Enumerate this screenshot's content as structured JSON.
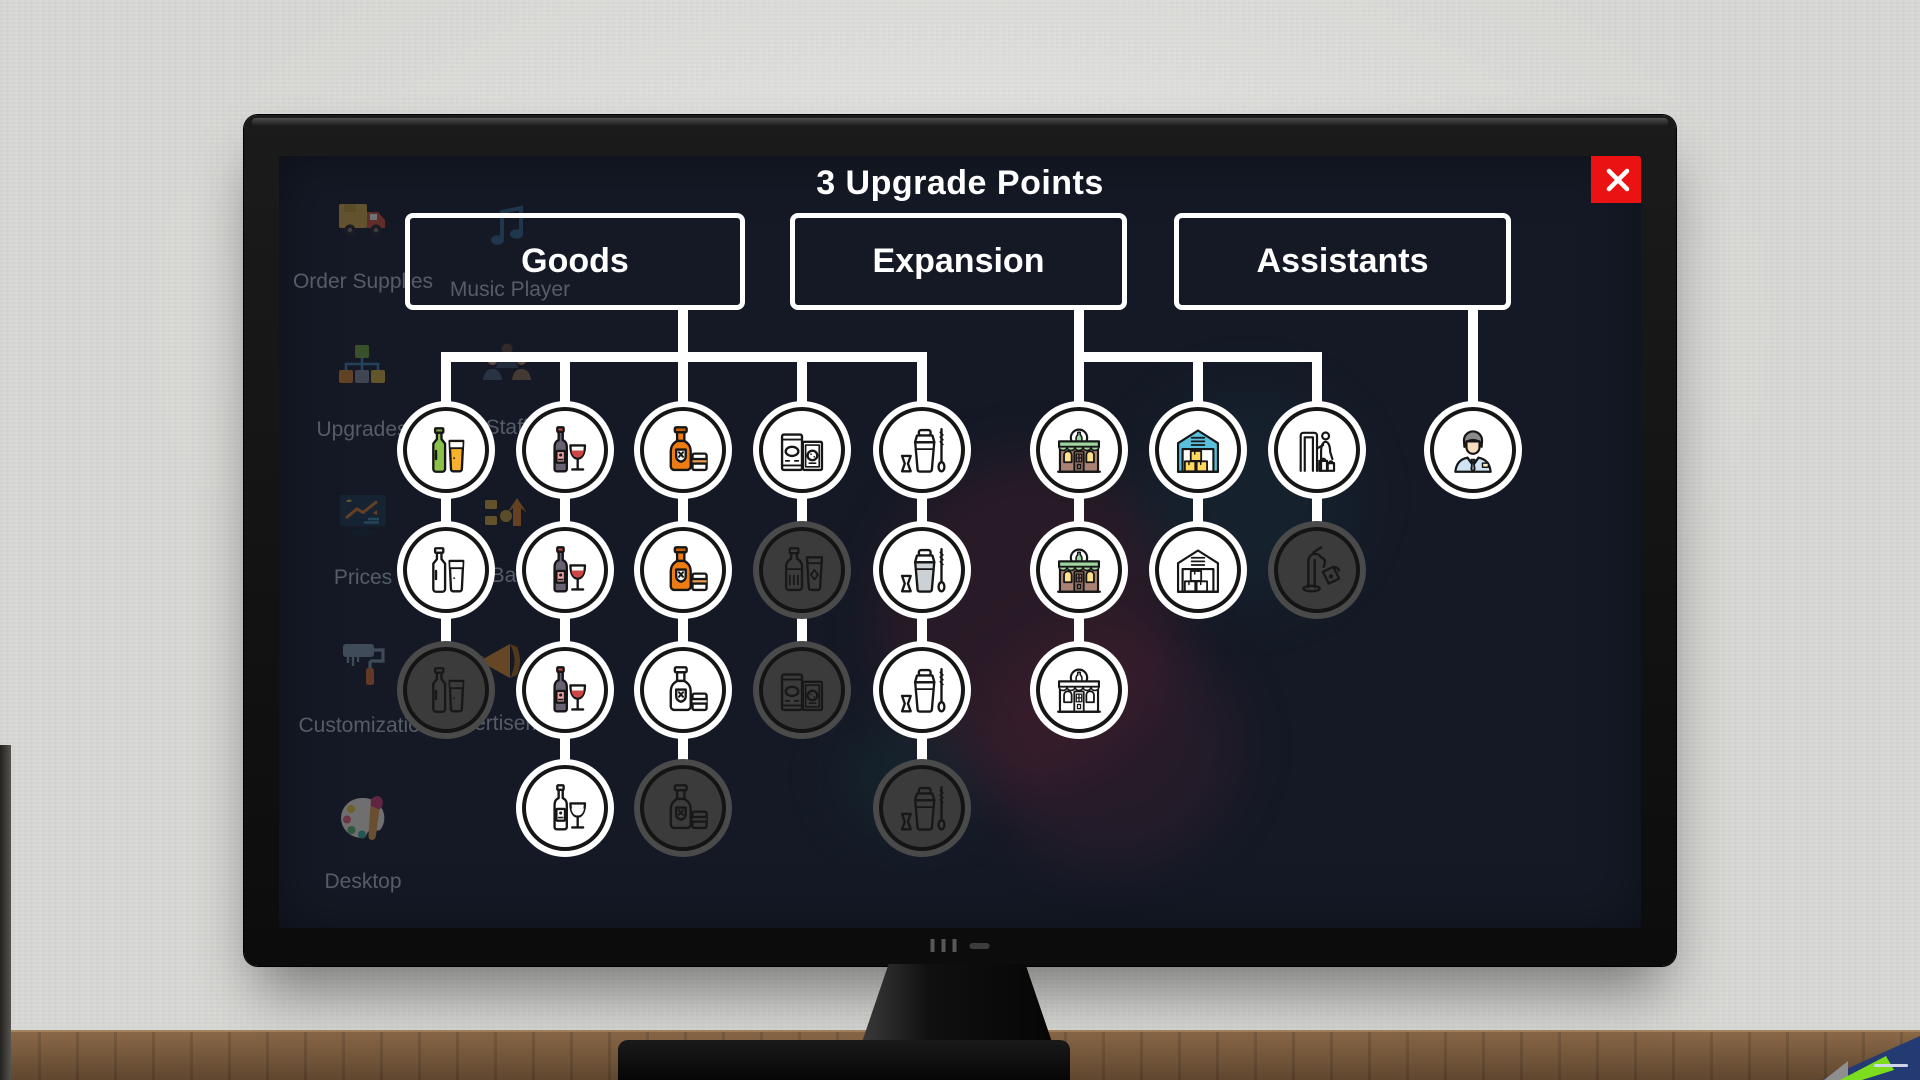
{
  "screen": {
    "title": "3 Upgrade Points",
    "upgrade_points": 3,
    "close": {
      "icon": "close-icon"
    },
    "tree": {
      "branches": [
        {
          "label": "Goods",
          "columns": [
            {
              "nodes": [
                {
                  "icon": "beer",
                  "state": "color"
                },
                {
                  "icon": "beer",
                  "state": "outline"
                },
                {
                  "icon": "beer",
                  "state": "locked"
                }
              ]
            },
            {
              "nodes": [
                {
                  "icon": "wine",
                  "state": "color"
                },
                {
                  "icon": "wine",
                  "state": "color"
                },
                {
                  "icon": "wine",
                  "state": "color"
                },
                {
                  "icon": "wine",
                  "state": "outline"
                }
              ]
            },
            {
              "nodes": [
                {
                  "icon": "whiskey",
                  "state": "color"
                },
                {
                  "icon": "whiskey",
                  "state": "color"
                },
                {
                  "icon": "whiskey",
                  "state": "outline"
                },
                {
                  "icon": "whiskey",
                  "state": "locked"
                }
              ]
            },
            {
              "nodes": [
                {
                  "icon": "snacks",
                  "state": "outline"
                },
                {
                  "icon": "soda",
                  "state": "locked"
                },
                {
                  "icon": "snacks",
                  "state": "locked"
                }
              ]
            },
            {
              "nodes": [
                {
                  "icon": "shaker",
                  "state": "outline"
                },
                {
                  "icon": "shaker",
                  "state": "tinted"
                },
                {
                  "icon": "shaker",
                  "state": "outline"
                },
                {
                  "icon": "shaker",
                  "state": "locked"
                }
              ]
            }
          ]
        },
        {
          "label": "Expansion",
          "columns": [
            {
              "nodes": [
                {
                  "icon": "shop",
                  "state": "color"
                },
                {
                  "icon": "shop",
                  "state": "color"
                },
                {
                  "icon": "shop",
                  "state": "outline"
                }
              ]
            },
            {
              "nodes": [
                {
                  "icon": "warehouse",
                  "state": "color"
                },
                {
                  "icon": "warehouse",
                  "state": "outline"
                }
              ]
            },
            {
              "nodes": [
                {
                  "icon": "kiosk",
                  "state": "outline"
                },
                {
                  "icon": "tap",
                  "state": "locked"
                }
              ]
            }
          ]
        },
        {
          "label": "Assistants",
          "columns": [
            {
              "nodes": [
                {
                  "icon": "assistant",
                  "state": "color"
                }
              ]
            }
          ]
        }
      ]
    },
    "palette": {
      "beer": {
        "fa": "#8bc34a",
        "fb": "#f9b32b",
        "fc": "#7a9e3b",
        "fd": "#ffffff"
      },
      "wine": {
        "fa": "#6a6170",
        "fb": "#f0a3a3",
        "fc": "#cf4444",
        "fd": "#ffffff"
      },
      "whiskey": {
        "fa": "#ee7c12",
        "fb": "#f2a24b",
        "fc": "#c75f0a",
        "fd": "#ffffff"
      },
      "shop": {
        "fa": "#a98274",
        "fb": "#9fd6a0",
        "fc": "#ffe18a",
        "fd": "#8d6e63",
        "fe": "#ffffff"
      },
      "warehouse": {
        "fa": "#59bfdc",
        "fb": "#ffd95e",
        "fe": "#ffffff"
      },
      "assistant": {
        "fa": "#cfe3f5",
        "fb": "#f6dfc0",
        "fc": "#8a8a8a",
        "fd": "#8a95a0",
        "fe": "#fdf3bd"
      }
    },
    "colors": {
      "screen_bg": "#1d2433",
      "line_white": "#ffffff",
      "close_red": "#ea1212",
      "locked_gray": "#3b3b3b"
    }
  },
  "desktop": {
    "icons": [
      {
        "id": "order-supplies",
        "icon": "truck",
        "label": "Order Supplies"
      },
      {
        "id": "music-player",
        "icon": "note",
        "label": "Music Player"
      },
      {
        "id": "upgrades",
        "icon": "hierarchy",
        "label": "Upgrades"
      },
      {
        "id": "staff",
        "icon": "people",
        "label": "Staff"
      },
      {
        "id": "prices",
        "icon": "chart",
        "label": "Prices"
      },
      {
        "id": "bar",
        "icon": "gold",
        "label": "Bar"
      },
      {
        "id": "customization",
        "icon": "roller",
        "label": "Customization"
      },
      {
        "id": "advertisement",
        "icon": "megaphone",
        "label": "Advertisement"
      },
      {
        "id": "desktop",
        "icon": "palette",
        "label": "Desktop"
      }
    ]
  }
}
